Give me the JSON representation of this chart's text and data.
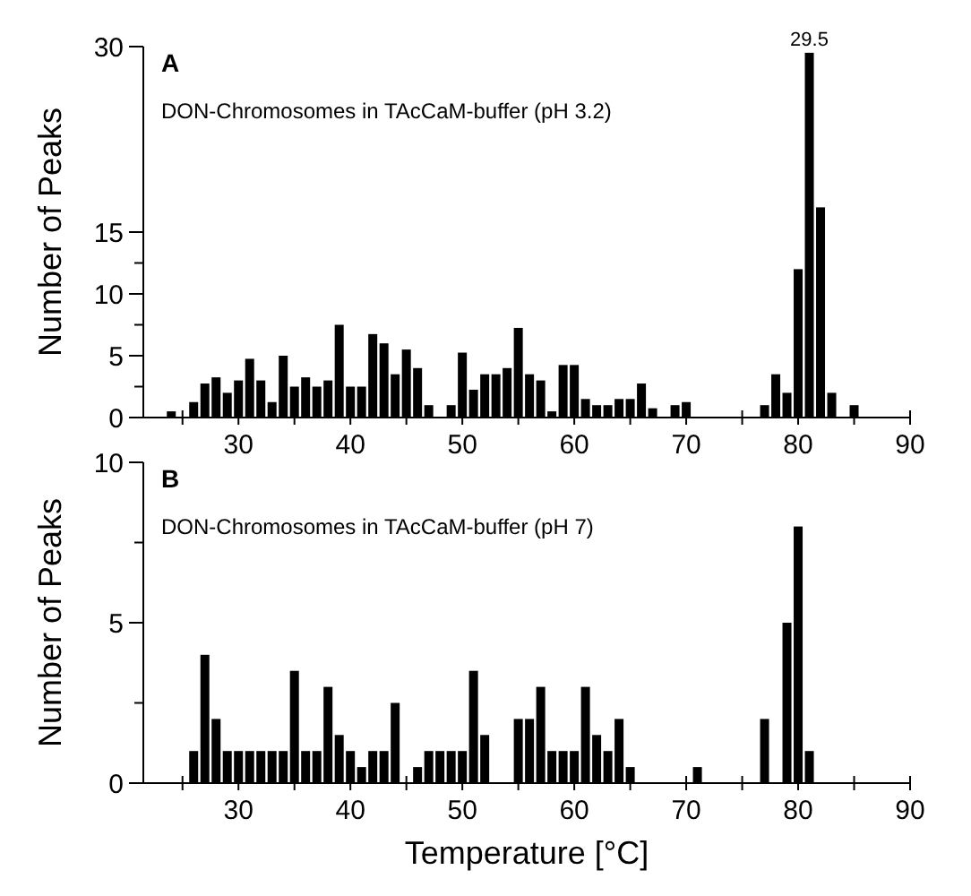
{
  "chart_data": [
    {
      "type": "bar",
      "title": "A",
      "subtitle": "DON-Chromosomes in TAcCaM-buffer (pH 3.2)",
      "ylabel": "Number of Peaks",
      "color": "#000000",
      "x": [
        24,
        26,
        27,
        28,
        29,
        30,
        31,
        32,
        33,
        34,
        35,
        36,
        37,
        38,
        39,
        40,
        41,
        42,
        43,
        44,
        45,
        46,
        47,
        49,
        50,
        51,
        52,
        53,
        54,
        55,
        56,
        57,
        58,
        59,
        60,
        61,
        62,
        63,
        64,
        65,
        66,
        67,
        69,
        70,
        77,
        78,
        79,
        80,
        81,
        82,
        83,
        85
      ],
      "values": [
        0.5,
        1.25,
        2.75,
        3.25,
        2,
        3,
        4.75,
        3,
        1.25,
        5,
        2.5,
        3.25,
        2.5,
        3,
        7.5,
        2.5,
        2.5,
        6.75,
        6,
        3.5,
        5.5,
        4,
        1,
        1,
        5.25,
        2.25,
        3.5,
        3.5,
        4,
        7.25,
        3.5,
        3,
        0.5,
        4.25,
        4.25,
        1.5,
        1,
        1,
        1.5,
        1.5,
        2.75,
        0.75,
        1,
        1.25,
        1,
        3.5,
        2,
        12,
        29.5,
        17,
        2,
        1
      ],
      "value_labels": [
        null,
        null,
        null,
        null,
        null,
        null,
        null,
        null,
        null,
        null,
        null,
        null,
        null,
        null,
        null,
        null,
        null,
        null,
        null,
        null,
        null,
        null,
        null,
        null,
        null,
        null,
        null,
        null,
        null,
        null,
        null,
        null,
        null,
        null,
        null,
        null,
        null,
        null,
        null,
        null,
        null,
        null,
        null,
        null,
        null,
        null,
        null,
        null,
        "29.5",
        null,
        null,
        null
      ],
      "xlim": [
        21.5,
        90
      ],
      "xticks": [
        {
          "value": 25,
          "label": null
        },
        30,
        {
          "value": 35,
          "label": null
        },
        40,
        {
          "value": 45,
          "label": null
        },
        50,
        {
          "value": 55,
          "label": null
        },
        60,
        {
          "value": 65,
          "label": null
        },
        70,
        {
          "value": 75,
          "label": null
        },
        80,
        {
          "value": 85,
          "label": null
        },
        90
      ],
      "ylim": [
        0,
        30
      ],
      "yticks": [
        0,
        {
          "value": 2.5,
          "label": null
        },
        5,
        {
          "value": 7.5,
          "label": null
        },
        10,
        {
          "value": 12.5,
          "label": null
        },
        15,
        30
      ]
    },
    {
      "type": "bar",
      "title": "B",
      "subtitle": "DON-Chromosomes in TAcCaM-buffer (pH 7)",
      "ylabel": "Number of Peaks",
      "xlabel": "Temperature [°C]",
      "color": "#000000",
      "x": [
        26,
        27,
        28,
        29,
        30,
        31,
        32,
        33,
        34,
        35,
        36,
        37,
        38,
        39,
        40,
        41,
        42,
        43,
        44,
        46,
        47,
        48,
        49,
        50,
        51,
        52,
        55,
        56,
        57,
        58,
        59,
        60,
        61,
        62,
        63,
        64,
        65,
        71,
        77,
        79,
        80,
        81
      ],
      "values": [
        1,
        4,
        2,
        1,
        1,
        1,
        1,
        1,
        1,
        3.5,
        1,
        1,
        3,
        1.5,
        1,
        0.5,
        1,
        1,
        2.5,
        0.5,
        1,
        1,
        1,
        1,
        3.5,
        1.5,
        2,
        2,
        3,
        1,
        1,
        1,
        3,
        1.5,
        1,
        2,
        0.5,
        0.5,
        2,
        5,
        8,
        1
      ],
      "xlim": [
        21.5,
        90
      ],
      "xticks": [
        {
          "value": 25,
          "label": null
        },
        30,
        {
          "value": 35,
          "label": null
        },
        40,
        {
          "value": 45,
          "label": null
        },
        50,
        {
          "value": 55,
          "label": null
        },
        60,
        {
          "value": 65,
          "label": null
        },
        70,
        {
          "value": 75,
          "label": null
        },
        80,
        {
          "value": 85,
          "label": null
        },
        90
      ],
      "ylim": [
        0,
        10
      ],
      "yticks": [
        0,
        {
          "value": 2.5,
          "label": null
        },
        5,
        {
          "value": 7.5,
          "label": null
        },
        10
      ]
    }
  ]
}
